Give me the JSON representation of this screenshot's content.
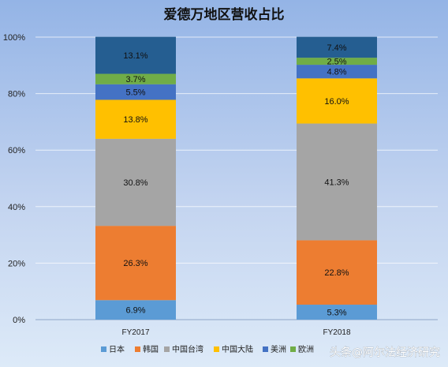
{
  "chart_data": {
    "type": "bar",
    "stacked": true,
    "title": "爱德万地区营收占比",
    "categories": [
      "FY2017",
      "FY2018"
    ],
    "ylim": [
      0,
      100
    ],
    "yticks": [
      "0%",
      "20%",
      "40%",
      "60%",
      "80%",
      "100%"
    ],
    "grid": true,
    "legend_position": "bottom",
    "series": [
      {
        "name": "日本",
        "values": [
          6.9,
          5.3
        ],
        "labels": [
          "6.9%",
          "5.3%"
        ],
        "color": "#5b9bd5"
      },
      {
        "name": "韩国",
        "values": [
          26.3,
          22.8
        ],
        "labels": [
          "26.3%",
          "22.8%"
        ],
        "color": "#ed7d31"
      },
      {
        "name": "中国台湾",
        "values": [
          30.8,
          41.3
        ],
        "labels": [
          "30.8%",
          "41.3%"
        ],
        "color": "#a5a5a5"
      },
      {
        "name": "中国大陆",
        "values": [
          13.8,
          16.0
        ],
        "labels": [
          "13.8%",
          "16.0%"
        ],
        "color": "#ffc000"
      },
      {
        "name": "美洲",
        "values": [
          5.5,
          4.8
        ],
        "labels": [
          "5.5%",
          "4.8%"
        ],
        "color": "#4472c4"
      },
      {
        "name": "欧洲",
        "values": [
          3.7,
          2.5
        ],
        "labels": [
          "3.7%",
          "2.5%"
        ],
        "color": "#70ad47"
      },
      {
        "name": "",
        "values": [
          13.1,
          7.4
        ],
        "labels": [
          "13.1%",
          "7.4%"
        ],
        "color": "#255e91"
      }
    ]
  },
  "watermark": "头条@阿尔法经济研究"
}
